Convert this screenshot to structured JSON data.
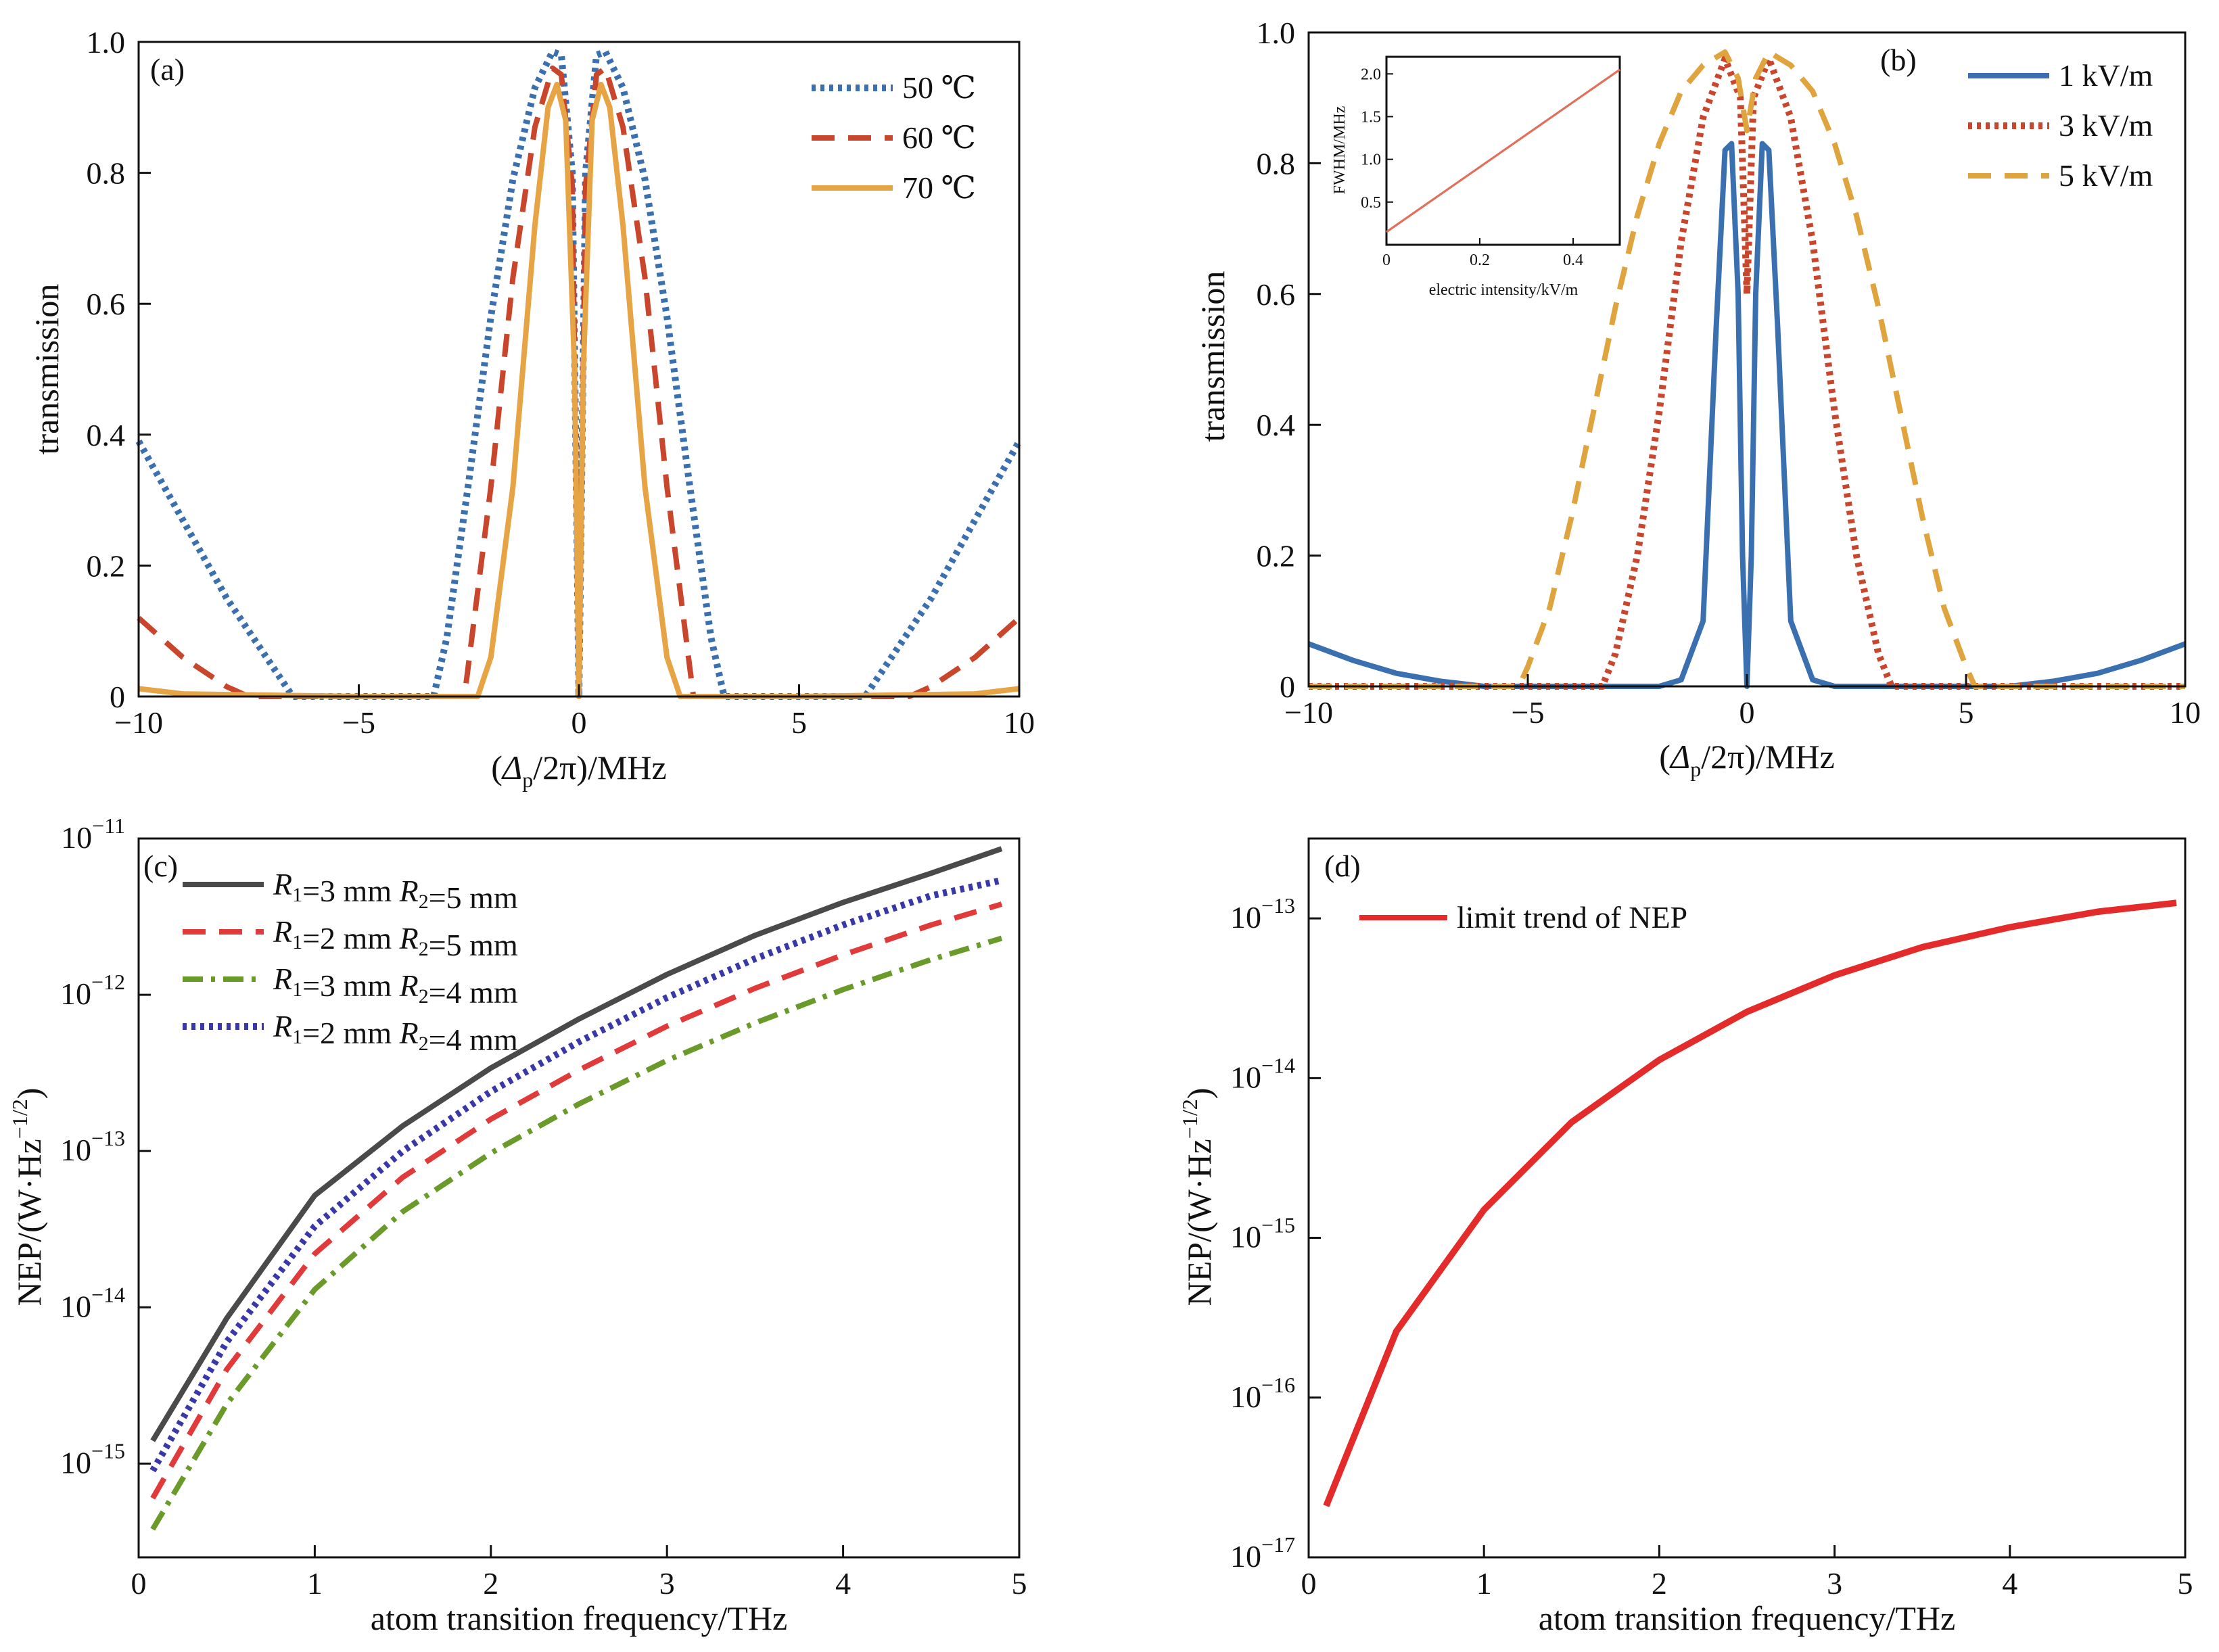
{
  "figure": {
    "panels": [
      {
        "id": "(a)",
        "xlabel": "(Δp/2π)/MHz",
        "ylabel": "transmission",
        "xticks": [
          "−10",
          "−5",
          "0",
          "5",
          "10"
        ],
        "yticks": [
          "0",
          "0.2",
          "0.4",
          "0.6",
          "0.8",
          "1.0"
        ],
        "legend": [
          "50 ℃",
          "60 ℃",
          "70 ℃"
        ]
      },
      {
        "id": "(b)",
        "xlabel": "(Δp/2π)/MHz",
        "ylabel": "transmission",
        "xticks": [
          "−10",
          "−5",
          "0",
          "5",
          "10"
        ],
        "yticks": [
          "0",
          "0.2",
          "0.4",
          "0.6",
          "0.8",
          "1.0"
        ],
        "legend": [
          "1 kV/m",
          "3 kV/m",
          "5 kV/m"
        ],
        "inset": {
          "xlabel": "electric intensity/kV/m",
          "ylabel": "FWHM/MHz",
          "xticks": [
            "0",
            "0.2",
            "0.4"
          ],
          "yticks": [
            "0.5",
            "1.0",
            "1.5",
            "2.0"
          ]
        }
      },
      {
        "id": "(c)",
        "xlabel": "atom transition frequency/THz",
        "ylabel": "NEP/(W·Hz−1/2)",
        "xticks": [
          "0",
          "1",
          "2",
          "3",
          "4",
          "5"
        ],
        "yticks_exp": [
          "−11",
          "−12",
          "−13",
          "−14",
          "−15"
        ],
        "legend": [
          "R1=3 mm R2=5 mm",
          "R1=2 mm R2=5 mm",
          "R1=3 mm R2=4 mm",
          "R1=2 mm R2=4 mm"
        ]
      },
      {
        "id": "(d)",
        "xlabel": "atom transition frequency/THz",
        "ylabel": "NEP/(W·Hz−1/2)",
        "xticks": [
          "0",
          "1",
          "2",
          "3",
          "4",
          "5"
        ],
        "yticks_exp": [
          "−13",
          "−14",
          "−15",
          "−16",
          "−17"
        ],
        "legend": [
          "limit trend of NEP"
        ]
      }
    ]
  },
  "chart_data": [
    {
      "panel": "(a)",
      "type": "line",
      "xlabel": "(Δp/2π)/MHz",
      "ylabel": "transmission",
      "xlim": [
        -10,
        10
      ],
      "ylim": [
        0,
        1.0
      ],
      "grid": false,
      "legend_position": "top-right",
      "series": [
        {
          "name": "50 ℃",
          "color": "#3a6fb0",
          "style": "dotted",
          "x": [
            -10,
            -9,
            -8,
            -7,
            -6.5,
            -6,
            -5,
            -4,
            -3.3,
            -3,
            -2.5,
            -2,
            -1.5,
            -1,
            -0.6,
            -0.4,
            -0.15,
            0,
            0.15,
            0.4,
            0.6,
            1,
            1.5,
            2,
            2.5,
            3,
            3.3,
            4,
            5,
            6,
            6.5,
            7,
            8,
            9,
            10
          ],
          "y": [
            0.39,
            0.27,
            0.15,
            0.05,
            0.0,
            0.0,
            0.0,
            0.0,
            0.0,
            0.09,
            0.33,
            0.58,
            0.79,
            0.93,
            0.985,
            0.98,
            0.8,
            0.0,
            0.8,
            0.98,
            0.985,
            0.93,
            0.79,
            0.58,
            0.33,
            0.09,
            0.0,
            0.0,
            0.0,
            0.0,
            0.0,
            0.05,
            0.15,
            0.27,
            0.39
          ]
        },
        {
          "name": "60 ℃",
          "color": "#c9452b",
          "style": "dashed",
          "x": [
            -10,
            -9,
            -8,
            -7.5,
            -7,
            -5,
            -3,
            -2.6,
            -2,
            -1.5,
            -1,
            -0.6,
            -0.4,
            -0.15,
            0,
            0.15,
            0.4,
            0.6,
            1,
            1.5,
            2,
            2.6,
            3,
            5,
            7,
            7.5,
            8,
            9,
            10
          ],
          "y": [
            0.12,
            0.06,
            0.015,
            0.0,
            0.0,
            0.0,
            0.0,
            0.0,
            0.32,
            0.64,
            0.87,
            0.96,
            0.95,
            0.78,
            0.0,
            0.78,
            0.95,
            0.96,
            0.87,
            0.64,
            0.32,
            0.0,
            0.0,
            0.0,
            0.0,
            0.0,
            0.015,
            0.06,
            0.12
          ]
        },
        {
          "name": "70 ℃",
          "color": "#e6a445",
          "style": "solid",
          "x": [
            -10,
            -9,
            -5,
            -2.3,
            -2,
            -1.5,
            -1,
            -0.7,
            -0.5,
            -0.3,
            -0.1,
            0,
            0.1,
            0.3,
            0.5,
            0.7,
            1,
            1.5,
            2,
            2.3,
            5,
            9,
            10
          ],
          "y": [
            0.012,
            0.004,
            0.0,
            0.0,
            0.06,
            0.32,
            0.72,
            0.9,
            0.935,
            0.88,
            0.5,
            0.0,
            0.5,
            0.88,
            0.935,
            0.9,
            0.72,
            0.32,
            0.06,
            0.0,
            0.0,
            0.004,
            0.012
          ]
        }
      ]
    },
    {
      "panel": "(b)",
      "type": "line",
      "xlabel": "(Δp/2π)/MHz",
      "ylabel": "transmission",
      "xlim": [
        -10,
        10
      ],
      "ylim": [
        0,
        1.0
      ],
      "grid": false,
      "legend_position": "top-right",
      "series": [
        {
          "name": "1 kV/m",
          "color": "#3a6fb0",
          "style": "solid",
          "x": [
            -10,
            -9,
            -8,
            -7,
            -6,
            -4,
            -2,
            -1.5,
            -1,
            -0.7,
            -0.5,
            -0.35,
            -0.2,
            -0.1,
            0,
            0.1,
            0.2,
            0.35,
            0.5,
            0.7,
            1,
            1.5,
            2,
            4,
            6,
            7,
            8,
            9,
            10
          ],
          "y": [
            0.065,
            0.04,
            0.02,
            0.008,
            0.0,
            0.0,
            0.0,
            0.01,
            0.1,
            0.55,
            0.82,
            0.83,
            0.6,
            0.2,
            0.0,
            0.2,
            0.6,
            0.83,
            0.82,
            0.55,
            0.1,
            0.01,
            0.0,
            0.0,
            0.0,
            0.008,
            0.02,
            0.04,
            0.065
          ]
        },
        {
          "name": "3 kV/m",
          "color": "#c9452b",
          "style": "dotted",
          "x": [
            -10,
            -6,
            -3.3,
            -3,
            -2.5,
            -2,
            -1.5,
            -1,
            -0.5,
            -0.15,
            0,
            0.15,
            0.5,
            1,
            1.5,
            2,
            2.5,
            3,
            3.3,
            6,
            10
          ],
          "y": [
            0.0,
            0.0,
            0.0,
            0.05,
            0.2,
            0.42,
            0.68,
            0.87,
            0.96,
            0.9,
            0.6,
            0.9,
            0.96,
            0.87,
            0.68,
            0.42,
            0.2,
            0.05,
            0.0,
            0.0,
            0.0
          ]
        },
        {
          "name": "5 kV/m",
          "color": "#e0a43e",
          "style": "dashed",
          "x": [
            -10,
            -6,
            -5.2,
            -5,
            -4.5,
            -4,
            -3.5,
            -3,
            -2.5,
            -2,
            -1.5,
            -1,
            -0.5,
            -0.2,
            0,
            0.2,
            0.5,
            1,
            1.5,
            2,
            2.5,
            3,
            3.5,
            4,
            4.5,
            5,
            5.2,
            6,
            10
          ],
          "y": [
            0.0,
            0.0,
            0.0,
            0.03,
            0.12,
            0.26,
            0.42,
            0.58,
            0.72,
            0.83,
            0.91,
            0.95,
            0.97,
            0.93,
            0.85,
            0.93,
            0.97,
            0.95,
            0.91,
            0.83,
            0.72,
            0.58,
            0.42,
            0.26,
            0.12,
            0.03,
            0.0,
            0.0,
            0.0
          ]
        }
      ],
      "inset": {
        "type": "line",
        "xlabel": "electric intensity/kV/m",
        "ylabel": "FWHM/MHz",
        "xlim": [
          0,
          0.5
        ],
        "ylim": [
          0,
          2.2
        ],
        "series": [
          {
            "name": "",
            "color": "#e0705c",
            "x": [
              0,
              0.5
            ],
            "y": [
              0.15,
              2.05
            ]
          }
        ]
      }
    },
    {
      "panel": "(c)",
      "type": "line",
      "xlabel": "atom transition frequency/THz",
      "ylabel": "NEP/(W·Hz−1/2)",
      "xlim": [
        0,
        5
      ],
      "ylim_log10": [
        -15.6,
        -11
      ],
      "yscale": "log",
      "grid": false,
      "legend_position": "top-left",
      "series": [
        {
          "name": "R1=3 mm R2=5 mm",
          "color": "#4a4a4a",
          "style": "solid",
          "x": [
            0.08,
            0.5,
            1,
            1.5,
            2,
            2.5,
            3,
            3.5,
            4,
            4.5,
            4.9
          ],
          "y": [
            1.4e-15,
            8.5e-15,
            5.2e-14,
            1.45e-13,
            3.4e-13,
            7e-13,
            1.35e-12,
            2.4e-12,
            3.9e-12,
            6e-12,
            8.6e-12
          ]
        },
        {
          "name": "R1=2 mm R2=5 mm",
          "color": "#e03a3a",
          "style": "dashed",
          "x": [
            0.08,
            0.5,
            1,
            1.5,
            2,
            2.5,
            3,
            3.5,
            4,
            4.5,
            4.9
          ],
          "y": [
            6e-16,
            4e-15,
            2.2e-14,
            6.8e-14,
            1.6e-13,
            3.3e-13,
            6.3e-13,
            1.1e-12,
            1.8e-12,
            2.8e-12,
            3.8e-12
          ]
        },
        {
          "name": "R1=3 mm R2=4 mm",
          "color": "#6a9a2a",
          "style": "dashdot",
          "x": [
            0.08,
            0.5,
            1,
            1.5,
            2,
            2.5,
            3,
            3.5,
            4,
            4.5,
            4.9
          ],
          "y": [
            3.8e-16,
            2.4e-15,
            1.3e-14,
            4.1e-14,
            9.7e-14,
            2e-13,
            3.8e-13,
            6.6e-13,
            1.08e-12,
            1.68e-12,
            2.3e-12
          ]
        },
        {
          "name": "R1=2 mm R2=4 mm",
          "color": "#3838a8",
          "style": "dotted",
          "x": [
            0.08,
            0.5,
            1,
            1.5,
            2,
            2.5,
            3,
            3.5,
            4,
            4.5,
            4.9
          ],
          "y": [
            9e-16,
            6e-15,
            3.3e-14,
            1e-13,
            2.4e-13,
            5e-13,
            9.6e-13,
            1.7e-12,
            2.8e-12,
            4.3e-12,
            5.4e-12
          ]
        }
      ]
    },
    {
      "panel": "(d)",
      "type": "line",
      "xlabel": "atom transition frequency/THz",
      "ylabel": "NEP/(W·Hz−1/2)",
      "xlim": [
        0,
        5
      ],
      "ylim_log10": [
        -17,
        -12.5
      ],
      "yscale": "log",
      "grid": false,
      "legend_position": "top-left",
      "series": [
        {
          "name": "limit trend of NEP",
          "color": "#e42b2b",
          "style": "solid",
          "x": [
            0.1,
            0.5,
            1,
            1.5,
            2,
            2.5,
            3,
            3.5,
            4,
            4.5,
            4.95
          ],
          "y": [
            2.1e-17,
            2.6e-16,
            1.5e-15,
            5.3e-15,
            1.3e-14,
            2.6e-14,
            4.4e-14,
            6.6e-14,
            8.8e-14,
            1.1e-13,
            1.25e-13
          ]
        }
      ]
    }
  ]
}
